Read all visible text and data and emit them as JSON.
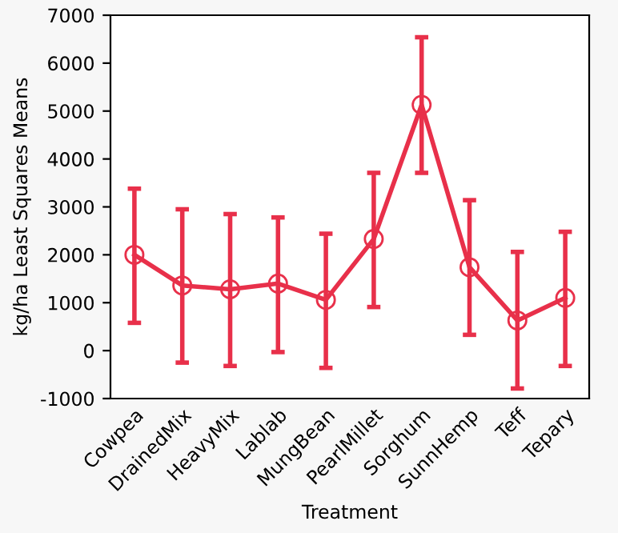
{
  "chart_data": {
    "type": "line",
    "xlabel": "Treatment",
    "ylabel": "kg/ha Least Squares Means",
    "categories": [
      "Cowpea",
      "DrainedMix",
      "HeavyMix",
      "Lablab",
      "MungBean",
      "PearlMillet",
      "Sorghum",
      "SunnHemp",
      "Teff",
      "Tepary"
    ],
    "series": [
      {
        "color": "#e8304a",
        "values": [
          2000,
          1360,
          1280,
          1400,
          1060,
          2330,
          5130,
          1740,
          630,
          1100
        ],
        "errors": [
          [
            580,
            3380
          ],
          [
            -250,
            2950
          ],
          [
            -320,
            2850
          ],
          [
            -30,
            2780
          ],
          [
            -360,
            2440
          ],
          [
            910,
            3710
          ],
          [
            3710,
            6540
          ],
          [
            330,
            3140
          ],
          [
            -790,
            2060
          ],
          [
            -320,
            2480
          ]
        ]
      }
    ],
    "ylim": [
      -1000,
      7000
    ],
    "yticks": [
      -1000,
      0,
      1000,
      2000,
      3000,
      4000,
      5000,
      6000,
      7000
    ],
    "grid": false,
    "legend": false,
    "marker": "circle",
    "line_style": "solid"
  }
}
